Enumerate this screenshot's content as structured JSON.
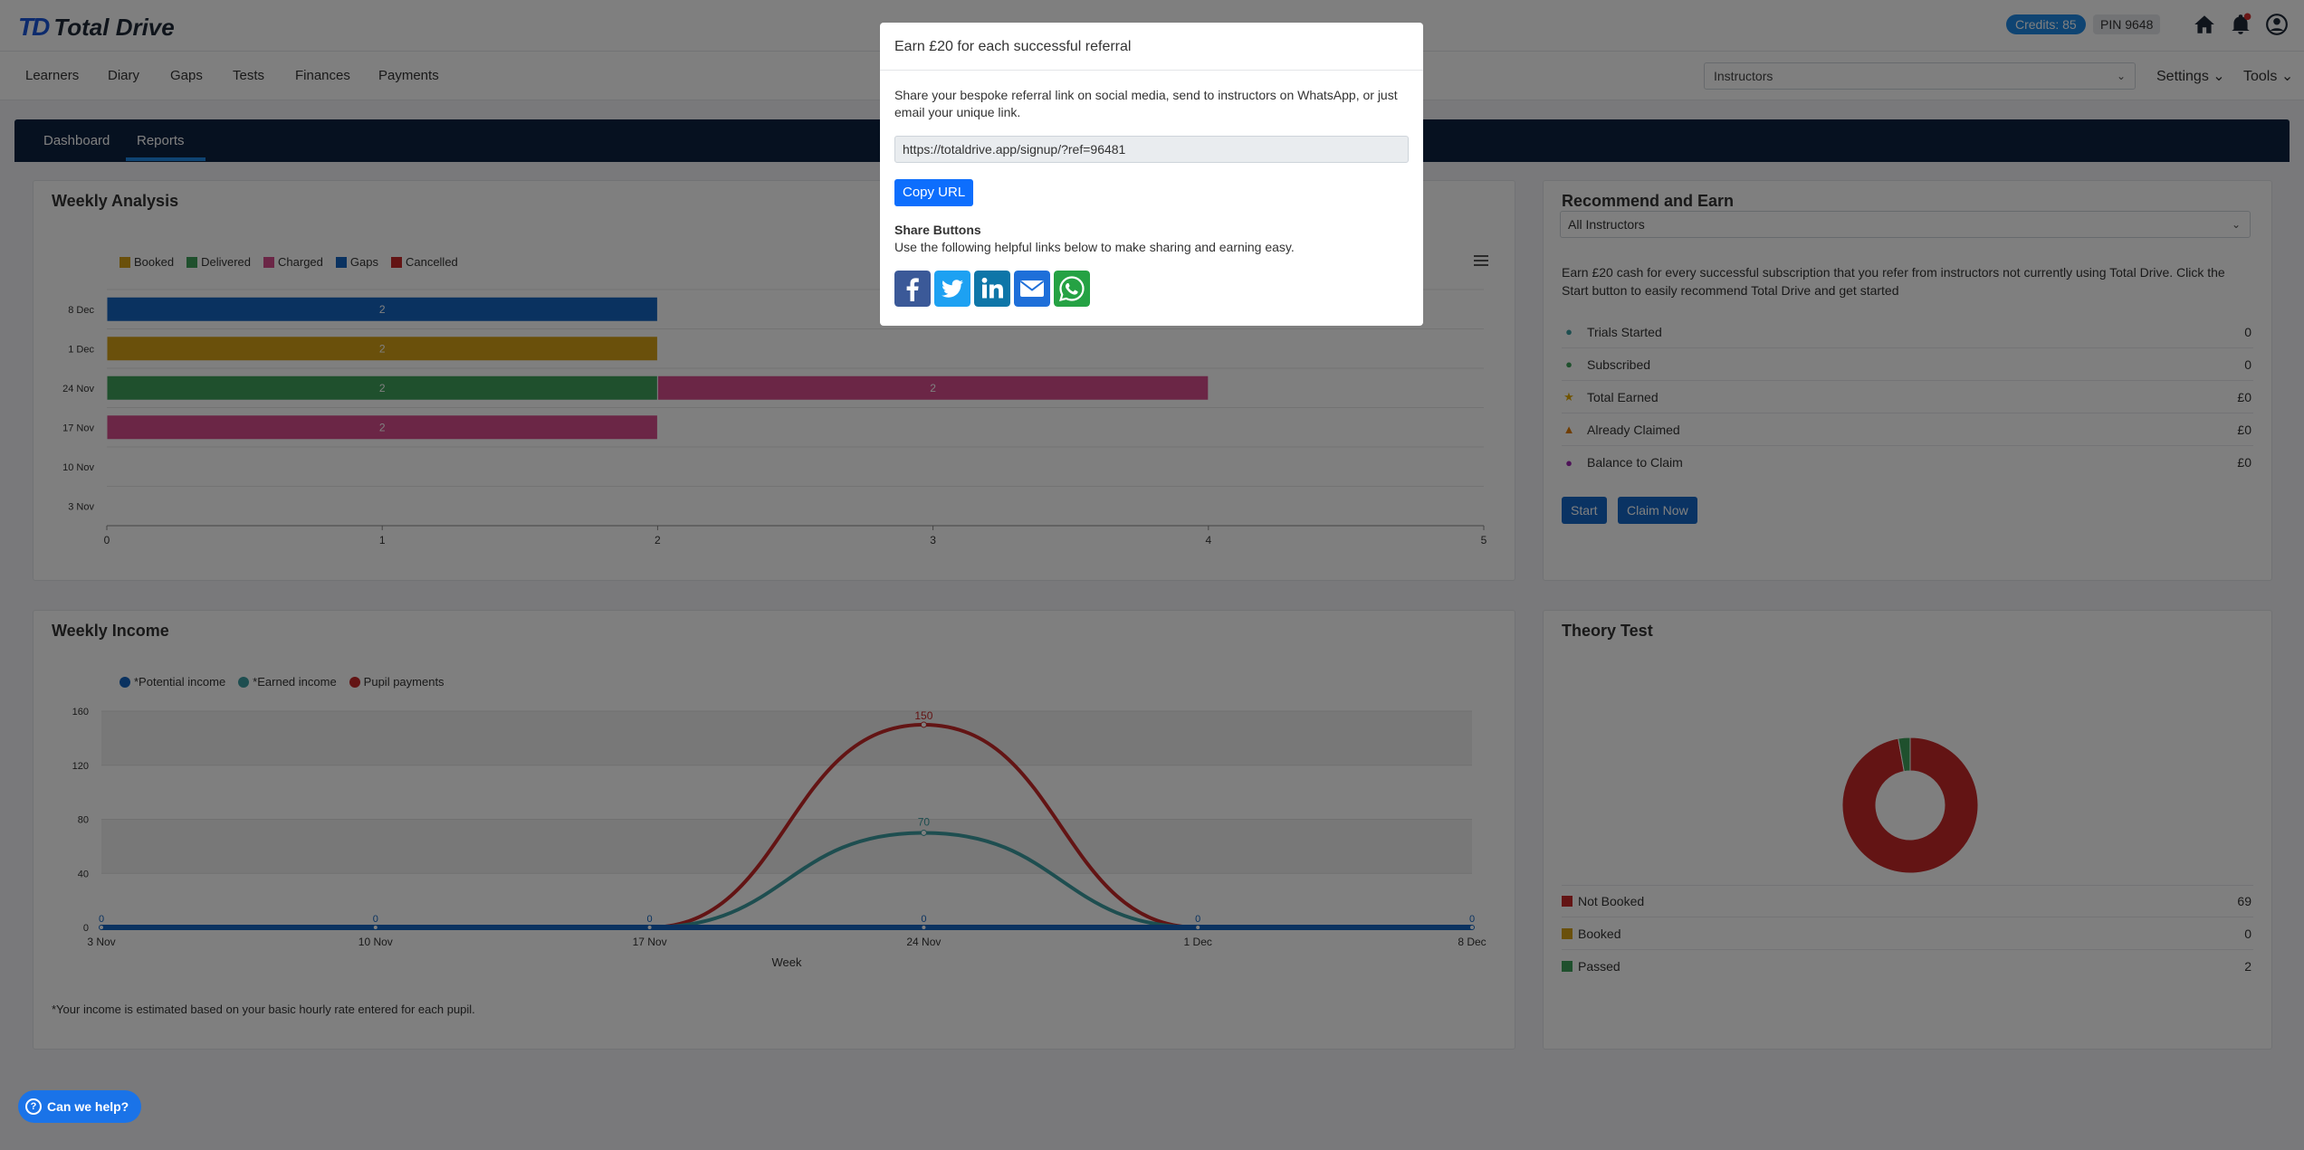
{
  "header": {
    "logo_mark": "TD",
    "logo_text": "Total Drive",
    "credits": "Credits: 85",
    "pin": "PIN 9648",
    "icons": [
      "home-icon",
      "bell-icon",
      "user-icon"
    ]
  },
  "nav": {
    "items": [
      "Learners",
      "Diary",
      "Gaps",
      "Tests",
      "Finances",
      "Payments"
    ],
    "select_value": "Instructors",
    "settings": "Settings",
    "tools": "Tools"
  },
  "tabs": [
    "Dashboard",
    "Reports"
  ],
  "weekly_analysis": {
    "title": "Weekly Analysis",
    "legend": [
      {
        "label": "Booked",
        "color": "#d4a017"
      },
      {
        "label": "Delivered",
        "color": "#3fa05a"
      },
      {
        "label": "Charged",
        "color": "#d64d8d"
      },
      {
        "label": "Gaps",
        "color": "#1565c0"
      },
      {
        "label": "Cancelled",
        "color": "#c62828"
      }
    ]
  },
  "weekly_income": {
    "title": "Weekly Income",
    "legend": [
      {
        "label": "*Potential income",
        "color": "#1565c0"
      },
      {
        "label": "*Earned income",
        "color": "#3d9ca0"
      },
      {
        "label": "Pupil payments",
        "color": "#c62828"
      }
    ],
    "footnote": "*Your income is estimated based on your basic hourly rate entered for each pupil."
  },
  "recommend": {
    "title": "Recommend and Earn",
    "select_value": "All Instructors",
    "description": "Earn £20 cash for every successful subscription that you refer from instructors not currently using Total Drive. Click the Start button to easily recommend Total Drive and get started",
    "stats": [
      {
        "label": "Trials Started",
        "value": "0",
        "icon": "user-icon",
        "color": "#3d9ca0"
      },
      {
        "label": "Subscribed",
        "value": "0",
        "icon": "user-plus-icon",
        "color": "#3fa05a"
      },
      {
        "label": "Total Earned",
        "value": "£0",
        "icon": "star-icon",
        "color": "#e0a800"
      },
      {
        "label": "Already Claimed",
        "value": "£0",
        "icon": "thumbs-up-icon",
        "color": "#e07b00"
      },
      {
        "label": "Balance to Claim",
        "value": "£0",
        "icon": "circle-icon",
        "color": "#9c27b0"
      }
    ],
    "start_label": "Start",
    "claim_label": "Claim Now"
  },
  "theory": {
    "title": "Theory Test",
    "rows": [
      {
        "label": "Not Booked",
        "value": "69",
        "color": "#c62828"
      },
      {
        "label": "Booked",
        "value": "0",
        "color": "#d4a017"
      },
      {
        "label": "Passed",
        "value": "2",
        "color": "#3fa05a"
      }
    ]
  },
  "chart_data": [
    {
      "type": "bar",
      "orientation": "horizontal",
      "stacked": true,
      "categories": [
        "8 Dec",
        "1 Dec",
        "24 Nov",
        "17 Nov",
        "10 Nov",
        "3 Nov"
      ],
      "series": [
        {
          "name": "Booked",
          "values": [
            0,
            2,
            0,
            0,
            0,
            0
          ]
        },
        {
          "name": "Delivered",
          "values": [
            0,
            0,
            2,
            0,
            0,
            0
          ]
        },
        {
          "name": "Charged",
          "values": [
            0,
            0,
            2,
            2,
            0,
            0
          ]
        },
        {
          "name": "Gaps",
          "values": [
            2,
            0,
            0,
            0,
            0,
            0
          ]
        },
        {
          "name": "Cancelled",
          "values": [
            0,
            0,
            0,
            0,
            0,
            0
          ]
        }
      ],
      "xlim": [
        0,
        5
      ],
      "xticks": [
        0,
        1,
        2,
        3,
        4,
        5
      ],
      "legend": "top-left"
    },
    {
      "type": "line",
      "x": [
        "3 Nov",
        "10 Nov",
        "17 Nov",
        "24 Nov",
        "1 Dec",
        "8 Dec"
      ],
      "series": [
        {
          "name": "*Potential income",
          "values": [
            0,
            0,
            0,
            0,
            0,
            0
          ]
        },
        {
          "name": "*Earned income",
          "values": [
            0,
            0,
            0,
            70,
            0,
            0
          ]
        },
        {
          "name": "Pupil payments",
          "values": [
            0,
            0,
            0,
            150,
            0,
            0
          ]
        }
      ],
      "xlabel": "Week",
      "ylim": [
        0,
        160
      ],
      "yticks": [
        0,
        40,
        80,
        120,
        160
      ],
      "data_labels": {
        "potential": [
          "0",
          "0",
          "0",
          "0",
          "0",
          "0"
        ],
        "earned_peak": "70",
        "pupil_peak": "150"
      },
      "legend": "top-left"
    },
    {
      "type": "pie",
      "donut": true,
      "labels": [
        "Not Booked",
        "Booked",
        "Passed"
      ],
      "values": [
        69,
        0,
        2
      ]
    }
  ],
  "modal": {
    "title": "Earn £20 for each successful referral",
    "description": "Share your bespoke referral link on social media, send to instructors on WhatsApp, or just email your unique link.",
    "url": "https://totaldrive.app/signup/?ref=96481",
    "copy_label": "Copy URL",
    "share_heading": "Share Buttons",
    "share_sub": "Use the following helpful links below to make sharing and earning easy.",
    "share_icons": [
      {
        "name": "facebook-icon",
        "color": "#3b5998"
      },
      {
        "name": "twitter-icon",
        "color": "#1da1f2"
      },
      {
        "name": "linkedin-icon",
        "color": "#0e76a8"
      },
      {
        "name": "email-icon",
        "color": "#1e6fd9"
      },
      {
        "name": "whatsapp-icon",
        "color": "#25a244"
      }
    ]
  },
  "help": {
    "label": "Can we help?"
  }
}
